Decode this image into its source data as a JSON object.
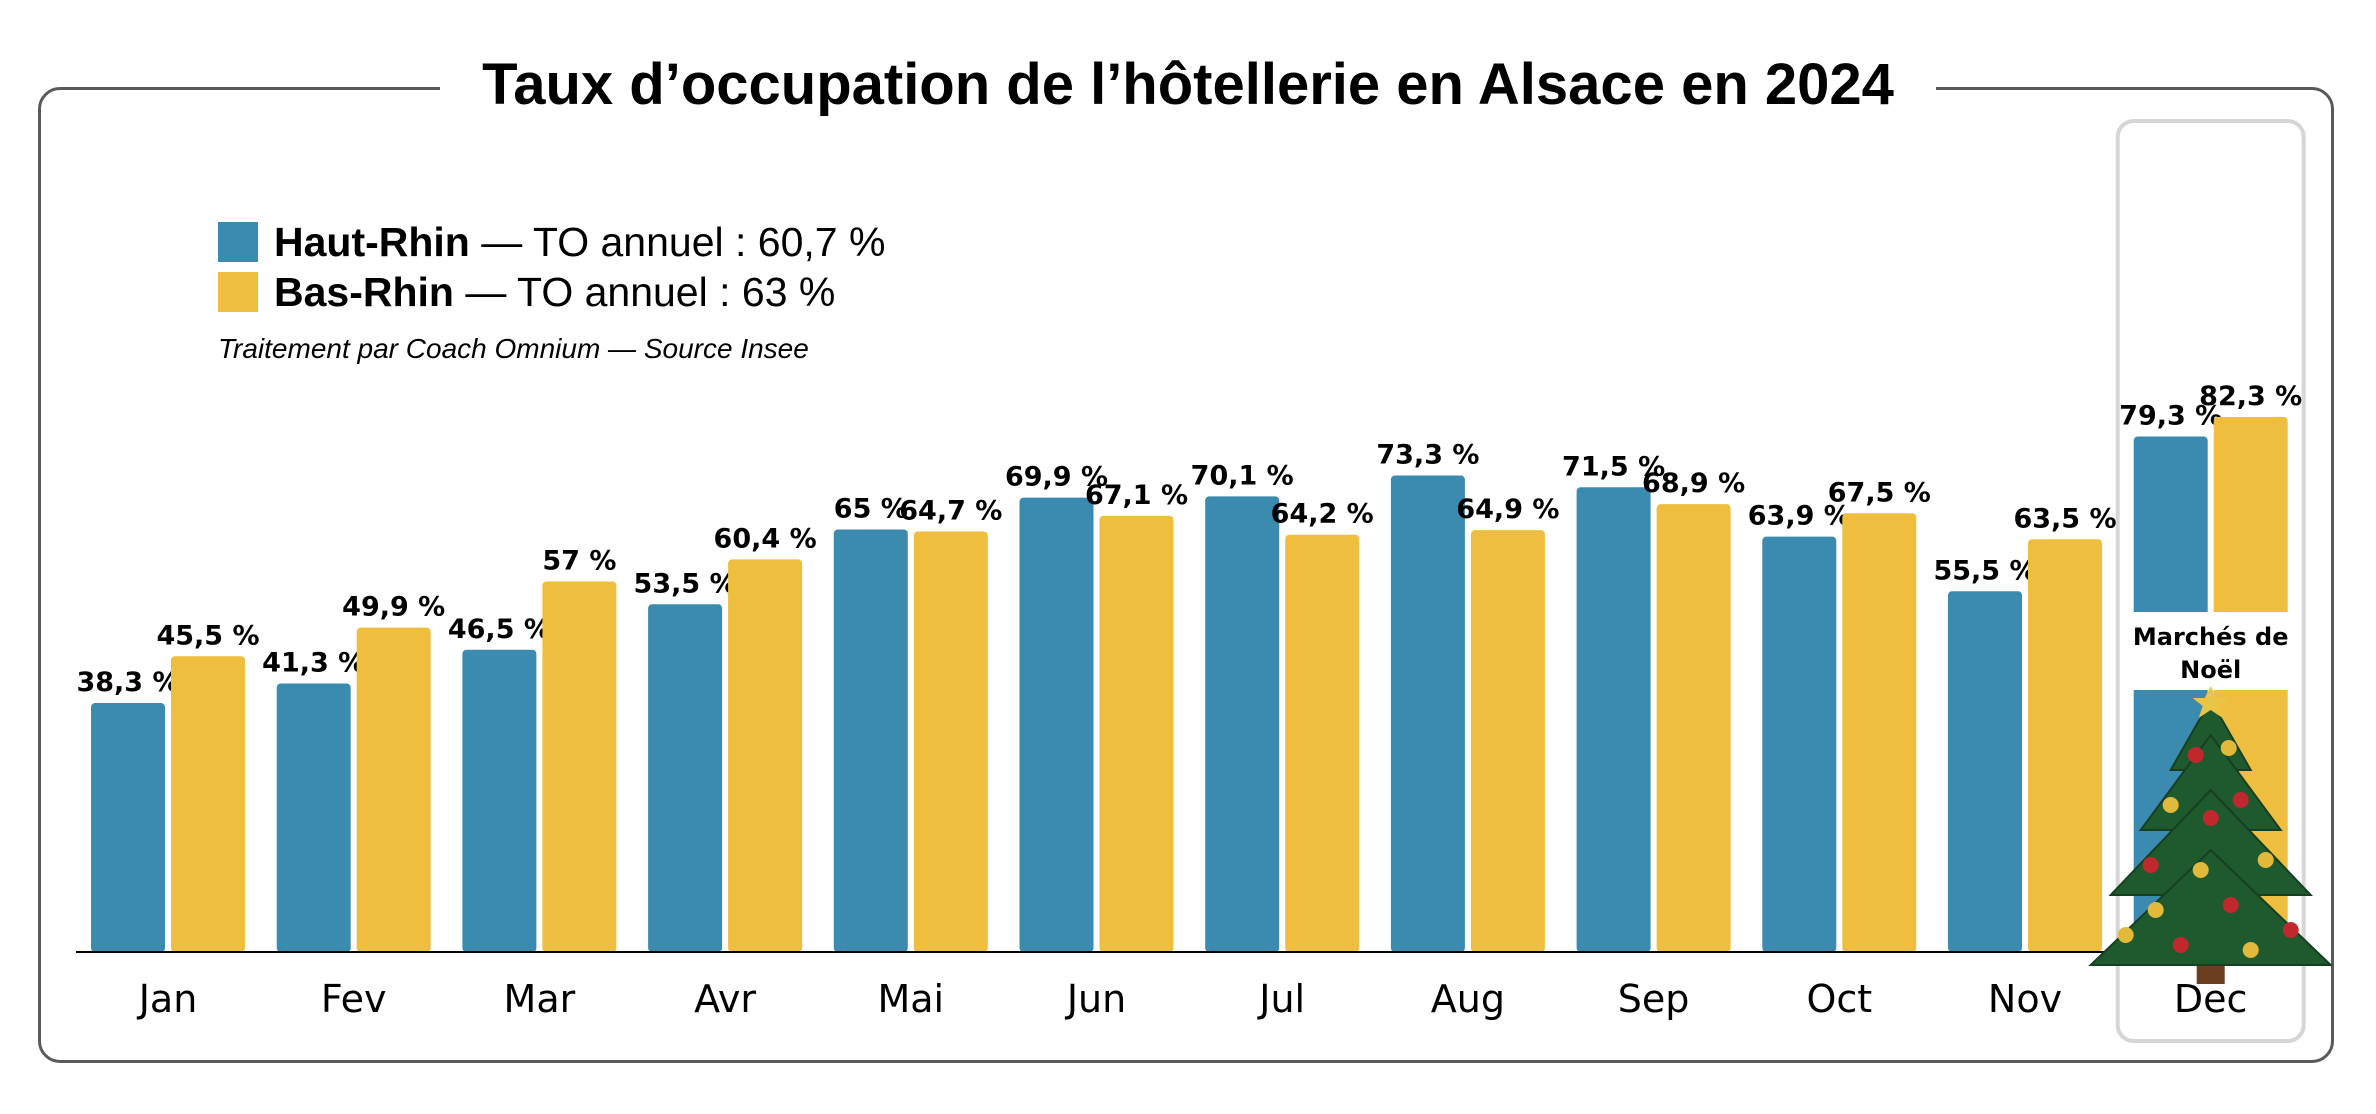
{
  "colors": {
    "haut_rhin": "#3B8AB0",
    "bas_rhin": "#EFBE3F",
    "frame": "#5a5a5a",
    "highlight": "#d6d6d6"
  },
  "legend": {
    "haut_rhin_name": "Haut-Rhin",
    "haut_rhin_rest": " — TO annuel : 60,7 %",
    "bas_rhin_name": "Bas-Rhin",
    "bas_rhin_rest": " — TO annuel : 63 %"
  },
  "source": "Traitement par Coach Omnium — Source Insee",
  "highlight": {
    "month": "Dec",
    "label_line1": "Marchés de",
    "label_line2": "Noël",
    "icon": "christmas-tree-icon"
  },
  "chart_data": {
    "type": "bar",
    "title": "Taux d’occupation de l’hôtellerie en Alsace en 2024",
    "xlabel": "",
    "ylabel": "",
    "ylim": [
      0,
      85
    ],
    "grid": false,
    "legend_position": "top-left",
    "categories": [
      "Jan",
      "Fev",
      "Mar",
      "Avr",
      "Mai",
      "Jun",
      "Jul",
      "Aug",
      "Sep",
      "Oct",
      "Nov",
      "Dec"
    ],
    "series": [
      {
        "name": "Haut-Rhin",
        "values": [
          38.3,
          41.3,
          46.5,
          53.5,
          65,
          69.9,
          70.1,
          73.3,
          71.5,
          63.9,
          55.5,
          79.3
        ],
        "labels": [
          "38,3 %",
          "41,3 %",
          "46,5 %",
          "53,5 %",
          "65 %",
          "69,9 %",
          "70,1 %",
          "73,3 %",
          "71,5 %",
          "63,9 %",
          "55,5 %",
          "79,3 %"
        ]
      },
      {
        "name": "Bas-Rhin",
        "values": [
          45.5,
          49.9,
          57,
          60.4,
          64.7,
          67.1,
          64.2,
          64.9,
          68.9,
          67.5,
          63.5,
          82.3
        ],
        "labels": [
          "45,5 %",
          "49,9 %",
          "57 %",
          "60,4 %",
          "64,7 %",
          "67,1 %",
          "64,2 %",
          "64,9 %",
          "68,9 %",
          "67,5 %",
          "63,5 %",
          "82,3 %"
        ]
      }
    ]
  }
}
